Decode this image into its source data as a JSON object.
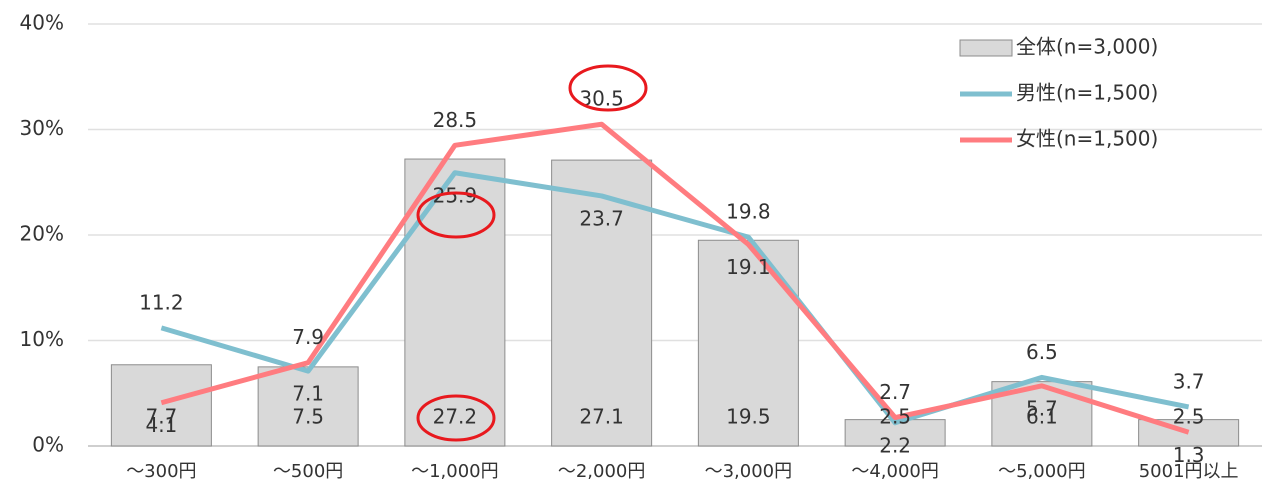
{
  "chart_data": {
    "type": "bar",
    "categories": [
      "～300円",
      "～500円",
      "～1,000円",
      "～2,000円",
      "～3,000円",
      "～4,000円",
      "～5,000円",
      "5001円以上"
    ],
    "series": [
      {
        "name": "全体(n=3,000)",
        "type": "bar",
        "color": "#d9d9d9",
        "values": [
          7.7,
          7.5,
          27.2,
          27.1,
          19.5,
          2.5,
          6.1,
          2.5
        ]
      },
      {
        "name": "男性(n=1,500)",
        "type": "line",
        "color": "#7fbfcf",
        "label_color": "#1f6fbf",
        "values": [
          11.2,
          7.1,
          25.9,
          23.7,
          19.8,
          2.2,
          6.5,
          3.7
        ]
      },
      {
        "name": "女性(n=1,500)",
        "type": "line",
        "color": "#ff7c80",
        "label_color": "#c0504d",
        "values": [
          4.1,
          7.9,
          28.5,
          30.5,
          19.1,
          2.7,
          5.7,
          1.3
        ]
      }
    ],
    "ylim": [
      0,
      40
    ],
    "yticks": [
      {
        "value": 0,
        "label": "0%"
      },
      {
        "value": 10,
        "label": "10%"
      },
      {
        "value": 20,
        "label": "20%"
      },
      {
        "value": 30,
        "label": "30%"
      },
      {
        "value": 40,
        "label": "40%"
      }
    ],
    "grid": true,
    "legend": "top-right"
  }
}
